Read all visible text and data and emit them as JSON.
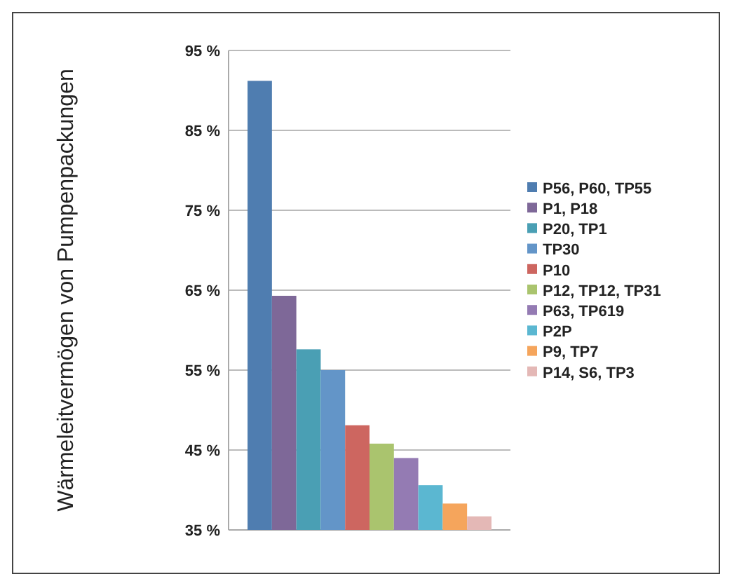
{
  "chart_data": {
    "type": "bar",
    "ylabel": "Wärmeleitvermögen von Pumpenpackungen",
    "categories": [
      null
    ],
    "ylim": [
      35,
      95
    ],
    "yticks": [
      {
        "value": 35,
        "label": "35 %"
      },
      {
        "value": 45,
        "label": "45 %"
      },
      {
        "value": 55,
        "label": "55 %"
      },
      {
        "value": 65,
        "label": "65 %"
      },
      {
        "value": 75,
        "label": "75 %"
      },
      {
        "value": 85,
        "label": "85 %"
      },
      {
        "value": 95,
        "label": "95 %"
      }
    ],
    "grid": "y",
    "legend": "right",
    "series": [
      {
        "name": "P56, P60, TP55",
        "color": "#4f7db0",
        "values": [
          91.2
        ]
      },
      {
        "name": "P1, P18",
        "color": "#7e6898",
        "values": [
          64.3
        ]
      },
      {
        "name": "P20, TP1",
        "color": "#4a9fb4",
        "values": [
          57.6
        ]
      },
      {
        "name": "TP30",
        "color": "#6395c8",
        "values": [
          55.0
        ]
      },
      {
        "name": "P10",
        "color": "#cd6660",
        "values": [
          48.1
        ]
      },
      {
        "name": "P12, TP12, TP31",
        "color": "#aac46e",
        "values": [
          45.8
        ]
      },
      {
        "name": "P63, TP619",
        "color": "#947bb3",
        "values": [
          44.0
        ]
      },
      {
        "name": "P2P",
        "color": "#5bb7d1",
        "values": [
          40.6
        ]
      },
      {
        "name": "P9, TP7",
        "color": "#f5a55c",
        "values": [
          38.3
        ]
      },
      {
        "name": "P14, S6, TP3",
        "color": "#e4b8b6",
        "values": [
          36.7
        ]
      }
    ]
  }
}
